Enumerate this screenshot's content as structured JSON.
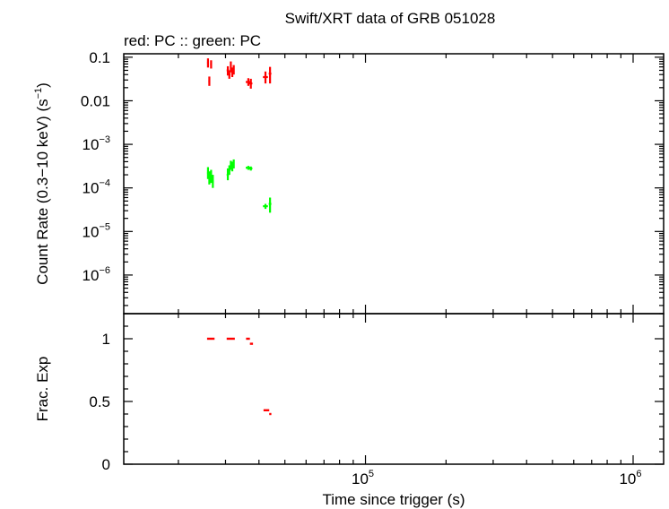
{
  "chart_data": [
    {
      "panel": "count-rate",
      "type": "scatter",
      "title": "Swift/XRT data of GRB 051028",
      "subtitle": "red: PC  :: green: PC",
      "ylabel_main": "Count Rate (0.3−10 keV) (s",
      "ylabel_exp": "−1",
      "ylabel_close": ")",
      "x_scale": "log",
      "y_scale": "log",
      "xlim": [
        12500,
        1300000
      ],
      "ylim": [
        1.3e-07,
        0.12
      ],
      "y_ticks": [
        {
          "value": 0.1,
          "label": "0.1"
        },
        {
          "value": 0.01,
          "label": "0.01"
        },
        {
          "base": "10",
          "exp": "−3",
          "value": 0.001
        },
        {
          "base": "10",
          "exp": "−4",
          "value": 0.0001
        },
        {
          "base": "10",
          "exp": "−5",
          "value": 1e-05
        },
        {
          "base": "10",
          "exp": "−6",
          "value": 1e-06
        }
      ],
      "series": [
        {
          "color": "#ff0000",
          "points": [
            {
              "x": 25800,
              "y": 0.075,
              "xerr": 200,
              "ylo": 0.058,
              "yhi": 0.094
            },
            {
              "x": 26100,
              "y": 0.028,
              "xerr": 200,
              "ylo": 0.022,
              "yhi": 0.036
            },
            {
              "x": 26500,
              "y": 0.07,
              "xerr": 200,
              "ylo": 0.055,
              "yhi": 0.085
            },
            {
              "x": 30600,
              "y": 0.05,
              "xerr": 300,
              "ylo": 0.038,
              "yhi": 0.062
            },
            {
              "x": 31000,
              "y": 0.04,
              "xerr": 300,
              "ylo": 0.032,
              "yhi": 0.05
            },
            {
              "x": 31400,
              "y": 0.062,
              "xerr": 200,
              "ylo": 0.045,
              "yhi": 0.08
            },
            {
              "x": 31800,
              "y": 0.045,
              "xerr": 300,
              "ylo": 0.035,
              "yhi": 0.058
            },
            {
              "x": 32200,
              "y": 0.052,
              "xerr": 200,
              "ylo": 0.04,
              "yhi": 0.066
            },
            {
              "x": 36500,
              "y": 0.027,
              "xerr": 800,
              "ylo": 0.022,
              "yhi": 0.033
            },
            {
              "x": 37300,
              "y": 0.025,
              "xerr": 500,
              "ylo": 0.019,
              "yhi": 0.032
            },
            {
              "x": 42300,
              "y": 0.035,
              "xerr": 900,
              "ylo": 0.025,
              "yhi": 0.047
            },
            {
              "x": 44000,
              "y": 0.042,
              "xerr": 500,
              "ylo": 0.025,
              "yhi": 0.06
            }
          ]
        },
        {
          "color": "#00ff00",
          "points": [
            {
              "x": 25800,
              "y": 0.00022,
              "xerr": 200,
              "ylo": 0.00016,
              "yhi": 0.0003
            },
            {
              "x": 26100,
              "y": 0.00017,
              "xerr": 200,
              "ylo": 0.00012,
              "yhi": 0.00024
            },
            {
              "x": 26500,
              "y": 0.00019,
              "xerr": 200,
              "ylo": 0.00013,
              "yhi": 0.00026
            },
            {
              "x": 26900,
              "y": 0.00014,
              "xerr": 200,
              "ylo": 0.0001,
              "yhi": 0.0002
            },
            {
              "x": 30600,
              "y": 0.0002,
              "xerr": 300,
              "ylo": 0.00015,
              "yhi": 0.00028
            },
            {
              "x": 31000,
              "y": 0.00026,
              "xerr": 300,
              "ylo": 0.0002,
              "yhi": 0.00033
            },
            {
              "x": 31400,
              "y": 0.00033,
              "xerr": 200,
              "ylo": 0.00026,
              "yhi": 0.00042
            },
            {
              "x": 31800,
              "y": 0.00031,
              "xerr": 300,
              "ylo": 0.00024,
              "yhi": 0.0004
            },
            {
              "x": 32200,
              "y": 0.00036,
              "xerr": 200,
              "ylo": 0.00028,
              "yhi": 0.00045
            },
            {
              "x": 36500,
              "y": 0.00029,
              "xerr": 800,
              "ylo": 0.00026,
              "yhi": 0.00032
            },
            {
              "x": 37300,
              "y": 0.00028,
              "xerr": 500,
              "ylo": 0.00025,
              "yhi": 0.00031
            },
            {
              "x": 42300,
              "y": 3.8e-05,
              "xerr": 900,
              "ylo": 3.3e-05,
              "yhi": 4.3e-05
            },
            {
              "x": 44000,
              "y": 4.3e-05,
              "xerr": 500,
              "ylo": 2.7e-05,
              "yhi": 6e-05
            }
          ]
        }
      ]
    },
    {
      "panel": "fractional-exposure",
      "type": "scatter",
      "xlabel": "Time since trigger (s)",
      "ylabel": "Frac. Exp",
      "x_scale": "log",
      "y_scale": "linear",
      "xlim": [
        12500,
        1300000
      ],
      "ylim": [
        0,
        1.2
      ],
      "y_ticks": [
        {
          "value": 1,
          "label": "1"
        },
        {
          "value": 0.5,
          "label": "0.5"
        },
        {
          "value": 0,
          "label": "0"
        }
      ],
      "x_ticks": [
        {
          "value": 100000,
          "base": "10",
          "exp": "5"
        },
        {
          "value": 1000000,
          "base": "10",
          "exp": "6"
        }
      ],
      "series": [
        {
          "color": "#ff0000",
          "points": [
            {
              "x0": 25600,
              "x1": 27300,
              "y": 1.0
            },
            {
              "x0": 30300,
              "x1": 32500,
              "y": 1.0
            },
            {
              "x0": 35800,
              "x1": 37000,
              "y": 1.0
            },
            {
              "x0": 37000,
              "x1": 38000,
              "y": 0.96
            },
            {
              "x0": 41600,
              "x1": 43700,
              "y": 0.43
            },
            {
              "x0": 43700,
              "x1": 44500,
              "y": 0.4
            }
          ]
        }
      ]
    }
  ]
}
